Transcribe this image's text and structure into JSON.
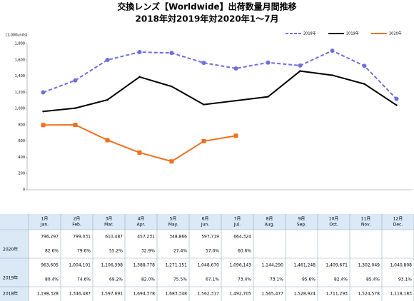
{
  "chart_data": {
    "type": "line",
    "title": "交換レンズ【Worldwide】出荷数量月間推移",
    "subtitle": "2018年対2019年対2020年1～7月",
    "y_unit_label": "(1,000units)",
    "categories": [
      "1月",
      "2月",
      "3月",
      "4月",
      "5月",
      "6月",
      "7月",
      "8月",
      "9月",
      "10月",
      "11月",
      "12月"
    ],
    "ylim": [
      0,
      1800
    ],
    "yticks": [
      0,
      200,
      400,
      600,
      800,
      {
        "value": 1000,
        "label": "1,000"
      },
      {
        "value": 1200,
        "label": "1,200"
      },
      {
        "value": 1400,
        "label": "1,400"
      },
      {
        "value": 1600,
        "label": "1,600"
      },
      {
        "value": 1800,
        "label": "1,800"
      }
    ],
    "grid": false,
    "legend": "top-right",
    "series": [
      {
        "name": "2018年",
        "color": "#6e6ee0",
        "dash": true,
        "marker": "circle",
        "values": [
          1198.328,
          1346.487,
          1597.691,
          1694.378,
          1683.348,
          1562.317,
          1492.705,
          1565.477,
          1528.924,
          1711.293,
          1524.578,
          1118.183
        ]
      },
      {
        "name": "2019年",
        "color": "#000000",
        "dash": false,
        "marker": "none",
        "values": [
          963.605,
          1004.101,
          1106.398,
          1388.778,
          1271.151,
          1048.67,
          1096.143,
          1144.29,
          1461.248,
          1409.671,
          1302.049,
          1040.808
        ]
      },
      {
        "name": "2020年",
        "color": "#f07020",
        "dash": false,
        "marker": "square",
        "values": [
          796.297,
          799.031,
          610.487,
          457.231,
          348.866,
          597.719,
          664.324,
          null,
          null,
          null,
          null,
          null
        ]
      }
    ]
  },
  "table": {
    "header": [
      [
        "1月",
        "Jan."
      ],
      [
        "2月",
        "Feb."
      ],
      [
        "3月",
        "Mar."
      ],
      [
        "4月",
        "Apr."
      ],
      [
        "5月",
        "May."
      ],
      [
        "6月",
        "Jun."
      ],
      [
        "7月",
        "Jul."
      ],
      [
        "8月",
        "Aug."
      ],
      [
        "9月",
        "Sep."
      ],
      [
        "10月",
        "Oct."
      ],
      [
        "11月",
        "Nov."
      ],
      [
        "12月",
        "Dec."
      ]
    ],
    "rows": [
      {
        "label": "2020年",
        "units": [
          "796,297",
          "799,031",
          "610,487",
          "457,231",
          "348,866",
          "597,719",
          "664,324"
        ],
        "share": [
          "82.6%",
          "79.6%",
          "55.2%",
          "32.9%",
          "27.4%",
          "57.0%",
          "60.6%"
        ]
      },
      {
        "label": "2019年",
        "units": [
          "963,605",
          "1,004,101",
          "1,106,398",
          "1,388,778",
          "1,271,151",
          "1,048,670",
          "1,096,143",
          "1,144,290",
          "1,461,248",
          "1,409,671",
          "1,302,049",
          "1,040,808"
        ],
        "share": [
          "80.4%",
          "74.6%",
          "69.2%",
          "82.0%",
          "75.5%",
          "67.1%",
          "73.4%",
          "73.1%",
          "95.6%",
          "82.4%",
          "85.4%",
          "93.1%"
        ]
      },
      {
        "label": "2018年",
        "units": [
          "1,198,328",
          "1,346,487",
          "1,597,691",
          "1,694,378",
          "1,683,348",
          "1,562,317",
          "1,492,705",
          "1,565,477",
          "1,528,924",
          "1,711,293",
          "1,524,578",
          "1,118,183"
        ]
      }
    ]
  }
}
